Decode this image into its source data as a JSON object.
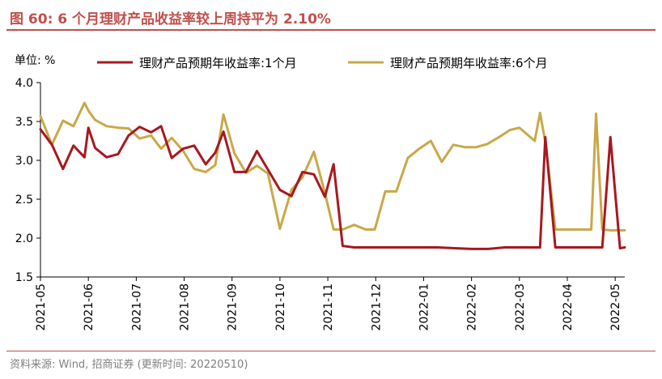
{
  "header": {
    "title": "图 60:  6 个月理财产品收益率较上周持平为 2.10%"
  },
  "footer": {
    "source": "资料来源:  Wind, 招商证券 (更新时间: 20220510)"
  },
  "chart_data": {
    "type": "line",
    "title": "6 个月理财产品收益率较上周持平为 2.10%",
    "unit_label": "单位:  %",
    "ylim": [
      1.5,
      4.0
    ],
    "yticks": [
      1.5,
      2.0,
      2.5,
      3.0,
      3.5,
      4.0
    ],
    "ytick_labels": [
      "1.5",
      "2.0",
      "2.5",
      "3.0",
      "3.5",
      "4.0"
    ],
    "xlim": [
      0,
      12.2
    ],
    "xticks": [
      0,
      1,
      2,
      3,
      4,
      5,
      6,
      7,
      8,
      9,
      10,
      11,
      12
    ],
    "xtick_labels": [
      "2021-05",
      "2021-06",
      "2021-07",
      "2021-08",
      "2021-09",
      "2021-10",
      "2021-11",
      "2021-12",
      "2022-01",
      "2022-02",
      "2022-03",
      "2022-04",
      "2022-05"
    ],
    "legend_position": "top",
    "series": [
      {
        "name": "理财产品预期年收益率:1个月",
        "color": "#a6191f",
        "x": [
          0,
          0.24,
          0.47,
          0.69,
          0.92,
          1.0,
          1.14,
          1.38,
          1.62,
          1.84,
          2.07,
          2.31,
          2.52,
          2.74,
          2.98,
          3.21,
          3.45,
          3.65,
          3.82,
          4.05,
          4.29,
          4.52,
          4.75,
          5.0,
          5.24,
          5.47,
          5.71,
          5.94,
          6.12,
          6.31,
          6.55,
          6.79,
          7.1,
          7.5,
          7.9,
          8.3,
          8.65,
          9.0,
          9.35,
          9.7,
          10.0,
          10.32,
          10.43,
          10.54,
          10.75,
          11.0,
          11.2,
          11.47,
          11.55,
          11.73,
          11.9,
          12.1,
          12.2
        ],
        "values": [
          3.4,
          3.2,
          2.89,
          3.19,
          3.04,
          3.42,
          3.16,
          3.04,
          3.08,
          3.32,
          3.43,
          3.36,
          3.44,
          3.03,
          3.15,
          3.19,
          2.95,
          3.1,
          3.37,
          2.85,
          2.85,
          3.12,
          2.88,
          2.62,
          2.54,
          2.85,
          2.82,
          2.53,
          2.95,
          1.9,
          1.88,
          1.88,
          1.88,
          1.88,
          1.88,
          1.88,
          1.87,
          1.86,
          1.86,
          1.88,
          1.88,
          1.88,
          1.88,
          3.3,
          1.88,
          1.88,
          1.88,
          1.88,
          1.88,
          1.88,
          3.3,
          1.87,
          1.88
        ]
      },
      {
        "name": "理财产品预期年收益率:6个月",
        "color": "#c9a848",
        "x": [
          0,
          0.24,
          0.47,
          0.69,
          0.92,
          1.0,
          1.14,
          1.38,
          1.62,
          1.84,
          2.07,
          2.31,
          2.52,
          2.74,
          2.98,
          3.21,
          3.45,
          3.65,
          3.82,
          4.05,
          4.29,
          4.52,
          4.75,
          5.0,
          5.24,
          5.47,
          5.71,
          5.94,
          6.12,
          6.31,
          6.55,
          6.79,
          6.98,
          7.2,
          7.43,
          7.67,
          7.91,
          8.15,
          8.38,
          8.62,
          8.86,
          9.1,
          9.33,
          9.55,
          9.8,
          10.0,
          10.32,
          10.43,
          10.55,
          10.75,
          11.0,
          11.2,
          11.5,
          11.6,
          11.73,
          11.9,
          12.2
        ],
        "values": [
          3.57,
          3.2,
          3.51,
          3.44,
          3.74,
          3.64,
          3.52,
          3.44,
          3.42,
          3.41,
          3.28,
          3.32,
          3.15,
          3.29,
          3.12,
          2.89,
          2.85,
          2.94,
          3.59,
          3.09,
          2.84,
          2.93,
          2.83,
          2.12,
          2.62,
          2.78,
          3.11,
          2.58,
          2.11,
          2.11,
          2.17,
          2.11,
          2.11,
          2.6,
          2.6,
          3.03,
          3.15,
          3.25,
          2.98,
          3.2,
          3.17,
          3.17,
          3.21,
          3.29,
          3.39,
          3.42,
          3.25,
          3.61,
          3.2,
          2.11,
          2.11,
          2.11,
          2.11,
          3.6,
          2.11,
          2.1,
          2.1
        ]
      }
    ]
  }
}
